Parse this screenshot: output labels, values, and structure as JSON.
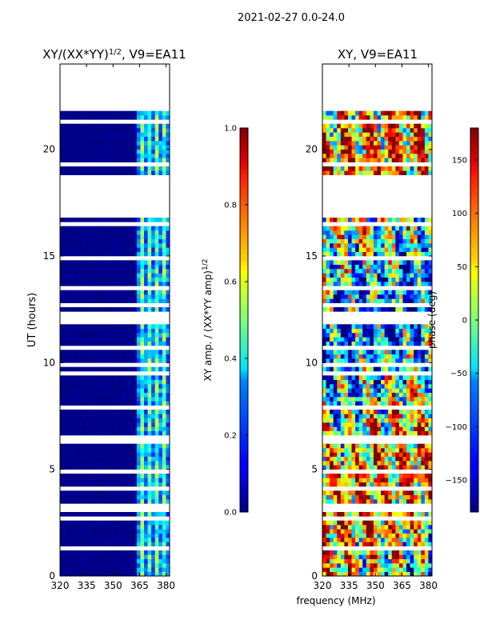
{
  "suptitle": "2021-02-27 0.0-24.0",
  "xlabel_shared": "frequency (MHz)",
  "chart_data": [
    {
      "type": "heatmap",
      "title_main": "XY/(XX*YY)",
      "title_sup": "1/2",
      "title_tail": ", V9=EA11",
      "xlabel": "frequency (MHz)",
      "ylabel": "UT (hours)",
      "xlim": [
        320,
        382
      ],
      "ylim": [
        0,
        24
      ],
      "xticks": [
        320,
        335,
        350,
        365,
        380
      ],
      "yticks": [
        0,
        5,
        10,
        15,
        20
      ],
      "colorbar": {
        "label_main": "XY amp. / (XX*YY amp)",
        "label_sup": "1/2",
        "range": [
          0.0,
          1.0
        ],
        "ticks": [
          "0.0",
          "0.2",
          "0.4",
          "0.6",
          "0.8",
          "1.0"
        ],
        "colormap": "jet"
      },
      "data_gaps_hours": [
        [
          21.6,
          24.0
        ],
        [
          18.6,
          16.6
        ]
      ],
      "high_value_channels_mhz": [
        363,
        366,
        369,
        373,
        377,
        380
      ],
      "description_values": "mostly ~0.0 below 362 MHz; ~0.3-0.6 in 362-380 MHz channels"
    },
    {
      "type": "heatmap",
      "title": "XY, V9=EA11",
      "xlabel": "frequency (MHz)",
      "ylabel": "",
      "xlim": [
        320,
        382
      ],
      "ylim": [
        0,
        24
      ],
      "xticks": [
        320,
        335,
        350,
        365,
        380
      ],
      "yticks": [
        0,
        5,
        10,
        15,
        20
      ],
      "colorbar": {
        "label": "phase (deg)",
        "range": [
          -180,
          180
        ],
        "ticks": [
          "150",
          "100",
          "50",
          "0",
          "−50",
          "−100",
          "−150"
        ],
        "colormap": "jet"
      },
      "data_gaps_hours": [
        [
          21.6,
          24.0
        ],
        [
          18.6,
          16.6
        ]
      ]
    }
  ]
}
